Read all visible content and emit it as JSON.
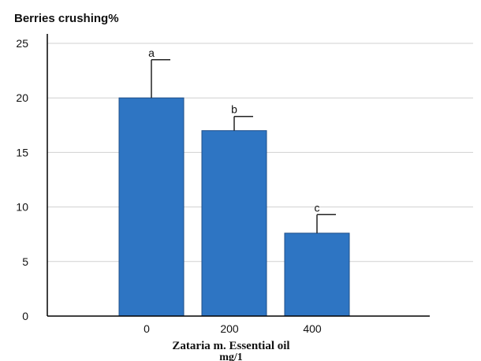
{
  "chart_data": {
    "type": "bar",
    "ylabel": "Berries crushing%",
    "xlabel_line1": "Zataria m. Essential oil",
    "xlabel_line2": "mg/1",
    "categories": [
      "0",
      "200",
      "400"
    ],
    "values": [
      20,
      17,
      7.6
    ],
    "errors": [
      3.5,
      1.3,
      1.7
    ],
    "significance_letters": [
      "a",
      "b",
      "c"
    ],
    "ylim": [
      0,
      25
    ],
    "yticks": [
      0,
      5,
      10,
      15,
      20,
      25
    ],
    "grid": true,
    "bar_color": "#2e75c3",
    "bar_edge_color": "#1f4f8a"
  }
}
